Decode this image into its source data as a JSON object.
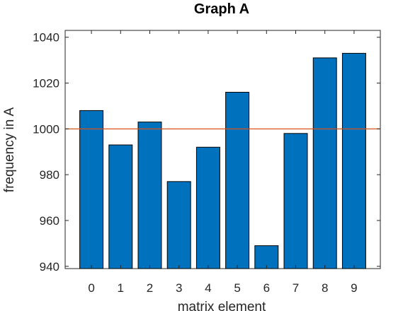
{
  "chart_data": {
    "type": "bar",
    "title": "Graph A",
    "xlabel": "matrix element",
    "ylabel": "frequency in A",
    "categories": [
      "0",
      "1",
      "2",
      "3",
      "4",
      "5",
      "6",
      "7",
      "8",
      "9"
    ],
    "values": [
      1008,
      993,
      1003,
      977,
      992,
      1016,
      949,
      998,
      1031,
      1033
    ],
    "ylim": [
      939,
      1043
    ],
    "yticks": [
      "940",
      "960",
      "980",
      "1000",
      "1020",
      "1040"
    ],
    "reference_line": {
      "y": 1000,
      "color": "#D95319"
    },
    "bar_color": "#0072BD",
    "grid": false,
    "box": true
  }
}
